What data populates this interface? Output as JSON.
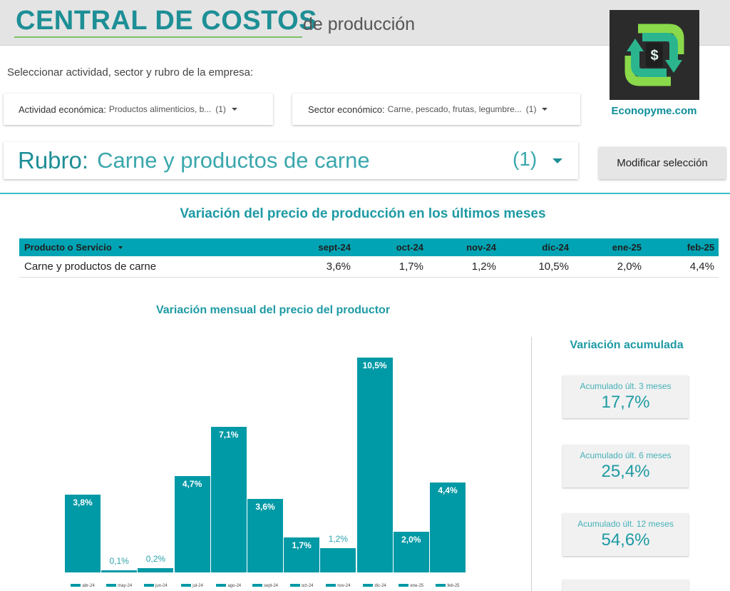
{
  "header": {
    "title_main": "CENTRAL DE COSTOS",
    "title_sub": "de producción",
    "logo_text": "Econopyme.com",
    "logo_icon": "dollar-cycle-icon"
  },
  "filters": {
    "instruction": "Seleccionar actividad, sector y rubro de la empresa:",
    "actividad": {
      "label": "Actividad económica:",
      "value": "Productos alimenticios, b...",
      "count": "(1)"
    },
    "sector": {
      "label": "Sector económico:",
      "value": "Carne, pescado, frutas, legumbre...",
      "count": "(1)"
    },
    "rubro": {
      "label": "Rubro:",
      "value": "Carne y productos de carne",
      "count": "(1)"
    },
    "modify_button": "Modificar selección"
  },
  "table": {
    "title": "Variación del precio de producción en los últimos meses",
    "product_header": "Producto o Servicio",
    "columns": [
      "sept-24",
      "oct-24",
      "nov-24",
      "dic-24",
      "ene-25",
      "feb-25"
    ],
    "rows": [
      {
        "product": "Carne y productos de carne",
        "values": [
          "3,6%",
          "1,7%",
          "1,2%",
          "10,5%",
          "2,0%",
          "4,4%"
        ]
      }
    ]
  },
  "chart_data": {
    "type": "bar",
    "title": "Variación mensual del precio del productor",
    "categories": [
      "abr-24",
      "may-24",
      "jun-24",
      "jul-24",
      "ago-24",
      "sept-24",
      "oct-24",
      "nov-24",
      "dic-24",
      "ene-25",
      "feb-25"
    ],
    "values": [
      3.8,
      0.1,
      0.2,
      4.7,
      7.1,
      3.6,
      1.7,
      1.2,
      10.5,
      2.0,
      4.4
    ],
    "labels": [
      "3,8%",
      "0,1%",
      "0,2%",
      "4,7%",
      "7,1%",
      "3,6%",
      "1,7%",
      "1,2%",
      "10,5%",
      "2,0%",
      "4,4%"
    ],
    "ylim": [
      0,
      10.5
    ],
    "bar_color": "#0099a6",
    "grid": false,
    "legend": "bottom"
  },
  "accumulated": {
    "title": "Variación acumulada",
    "items": [
      {
        "label": "Acumulado últ. 3 meses",
        "value": "17,7%"
      },
      {
        "label": "Acumulado últ. 6 meses",
        "value": "25,4%"
      },
      {
        "label": "Acumulado últ. 12 meses",
        "value": "54,6%"
      }
    ]
  },
  "colors": {
    "accent": "#1e8f96",
    "table_header": "#00a4b4",
    "bar": "#0099a6"
  }
}
